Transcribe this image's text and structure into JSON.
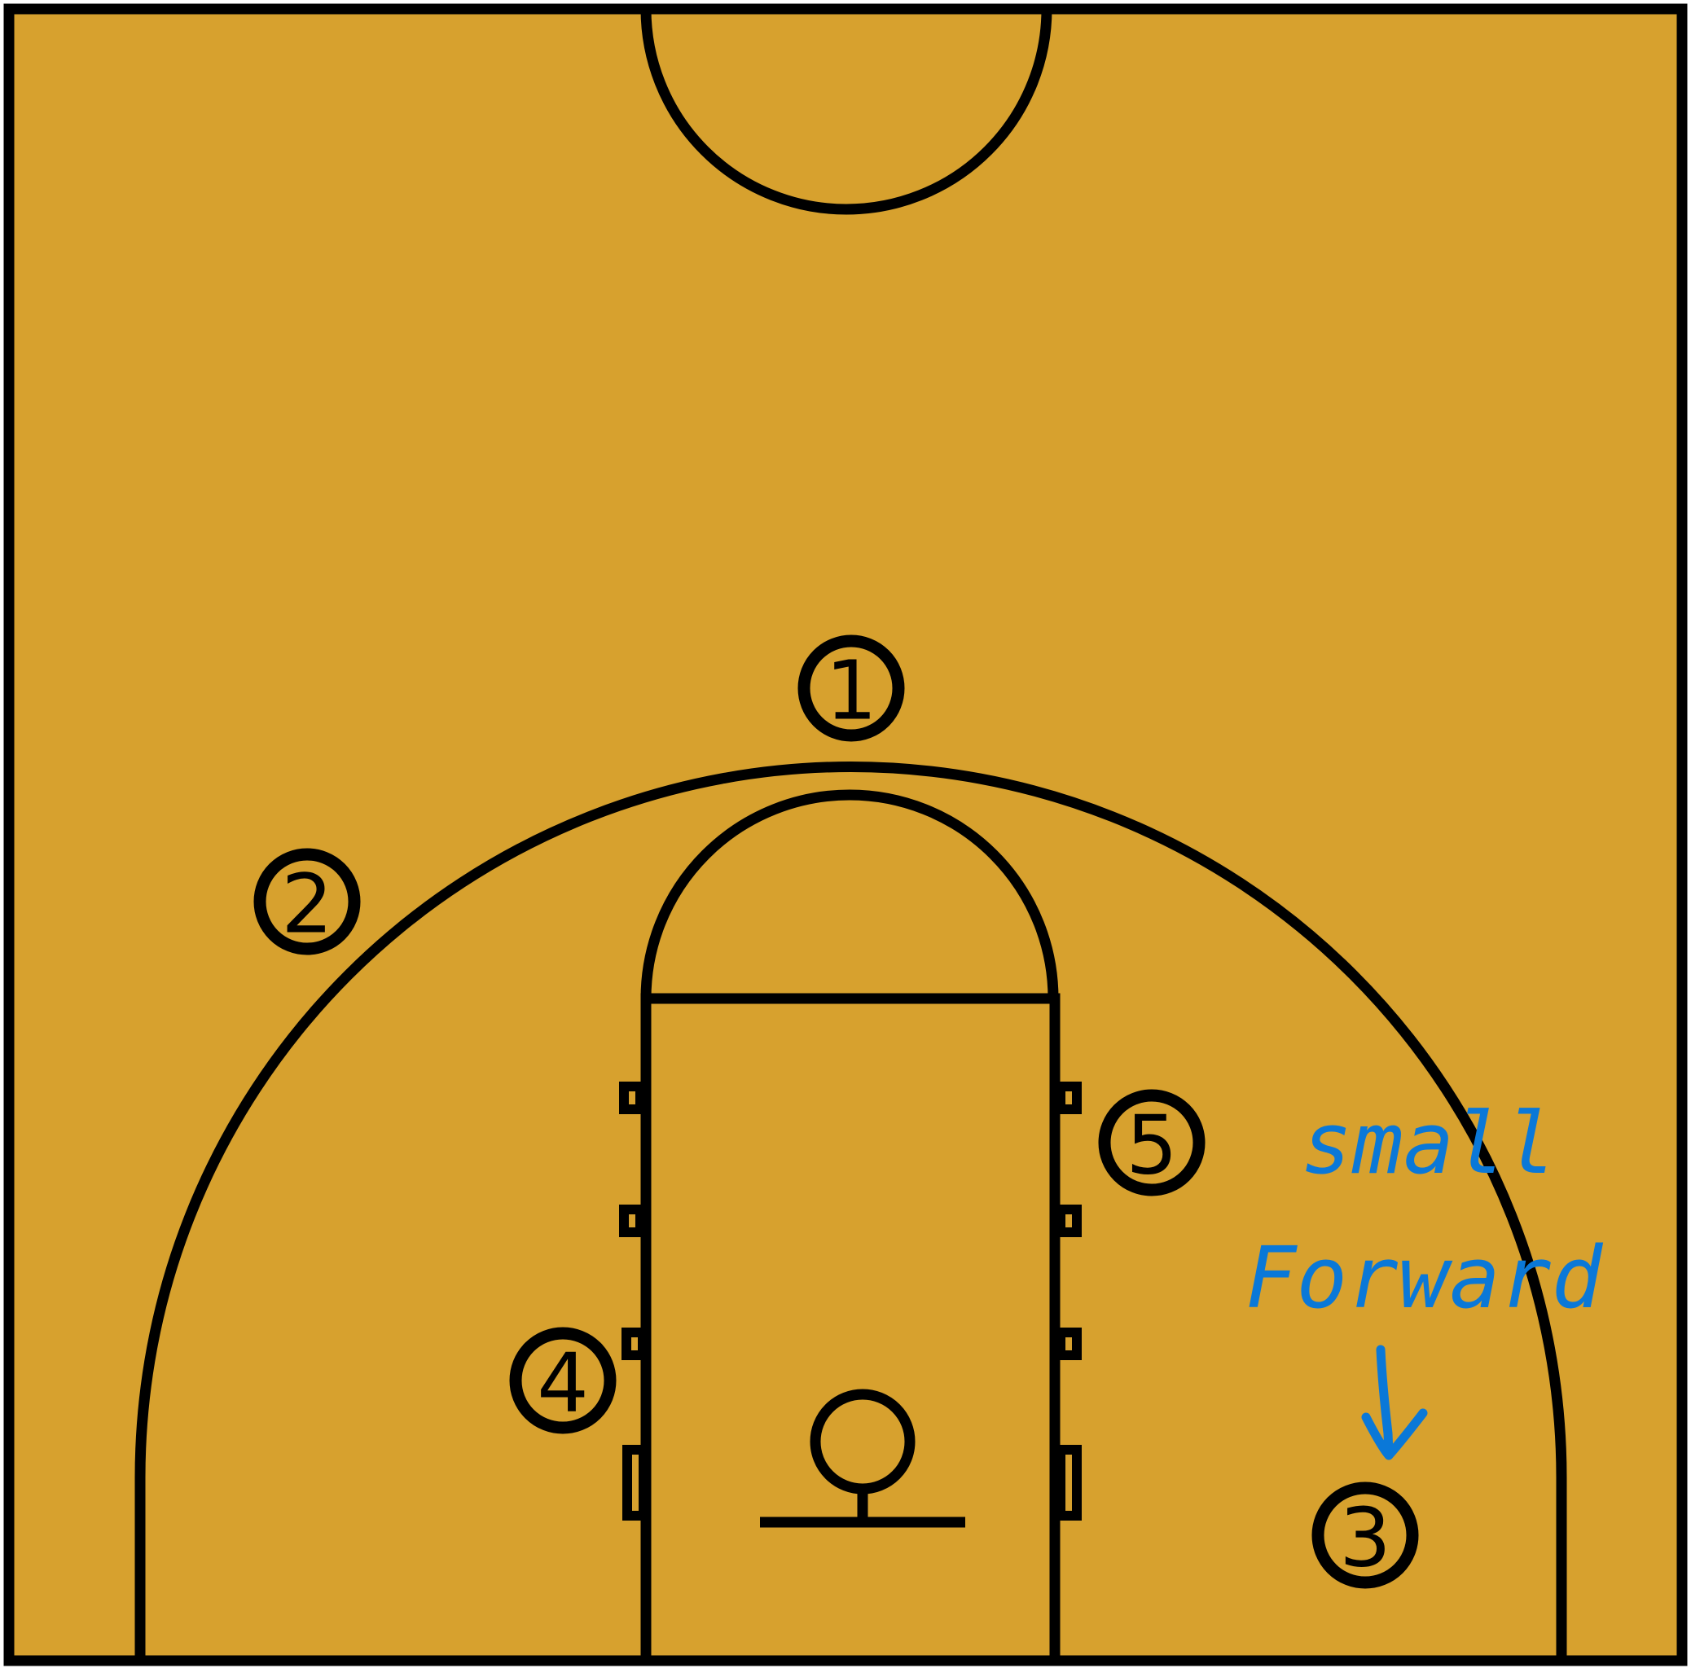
{
  "players": [
    "1",
    "2",
    "3",
    "4",
    "5"
  ],
  "annotation": [
    "small",
    "Forward"
  ]
}
